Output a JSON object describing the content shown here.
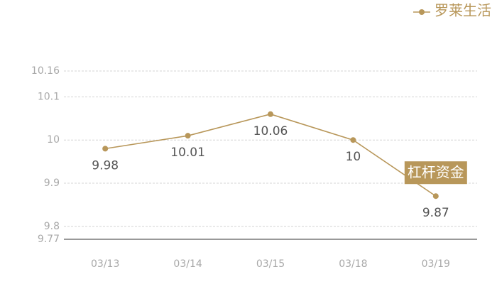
{
  "chart_data": {
    "type": "line",
    "categories": [
      "03/13",
      "03/14",
      "03/15",
      "03/18",
      "03/19"
    ],
    "series": [
      {
        "name": "罗莱生活",
        "color": "#b8975a",
        "values": [
          9.98,
          10.01,
          10.06,
          10,
          9.87
        ]
      }
    ],
    "ylim": [
      9.77,
      10.16
    ],
    "yticks": [
      9.77,
      9.8,
      9.9,
      10,
      10.1,
      10.16
    ],
    "grid": true,
    "legend": "top-right",
    "annotation": "杠杆资金"
  }
}
